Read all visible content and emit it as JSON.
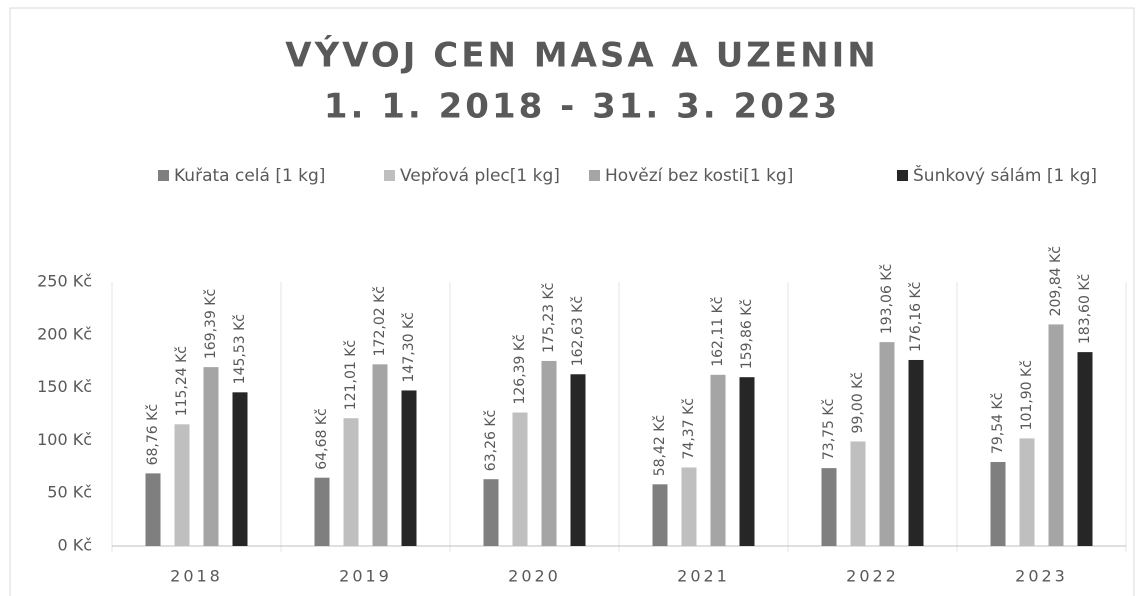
{
  "chart_data": {
    "type": "bar",
    "title": "VÝVOJ CEN MASA A UZENIN",
    "subtitle": "1. 1. 2018 - 31. 3. 2023",
    "categories": [
      "2018",
      "2019",
      "2020",
      "2021",
      "2022",
      "2023"
    ],
    "series": [
      {
        "name": "Kuřata celá [1 kg]",
        "color": "#7f7f7f",
        "values": [
          68.76,
          64.68,
          63.26,
          58.42,
          73.75,
          79.54
        ],
        "value_labels": [
          "68,76 Kč",
          "64,68 Kč",
          "63,26 Kč",
          "58,42 Kč",
          "73,75 Kč",
          "79,54 Kč"
        ]
      },
      {
        "name": "Vepřová plec[1 kg]",
        "color": "#bfbfbf",
        "values": [
          115.24,
          121.01,
          126.39,
          74.37,
          99.0,
          101.9
        ],
        "value_labels": [
          "115,24 Kč",
          "121,01 Kč",
          "126,39 Kč",
          "74,37 Kč",
          "99,00 Kč",
          "101,90 Kč"
        ]
      },
      {
        "name": "Hovězí bez kosti[1 kg]",
        "color": "#a5a5a5",
        "values": [
          169.39,
          172.02,
          175.23,
          162.11,
          193.06,
          209.84
        ],
        "value_labels": [
          "169,39 Kč",
          "172,02 Kč",
          "175,23 Kč",
          "162,11 Kč",
          "193,06 Kč",
          "209,84 Kč"
        ]
      },
      {
        "name": "Šunkový sálám [1 kg]",
        "color": "#262626",
        "values": [
          145.53,
          147.3,
          162.63,
          159.86,
          176.16,
          183.6
        ],
        "value_labels": [
          "145,53 Kč",
          "147,30 Kč",
          "162,63 Kč",
          "159,86 Kč",
          "176,16 Kč",
          "183,60 Kč"
        ]
      }
    ],
    "ylim": [
      0,
      250
    ],
    "yticks": [
      {
        "value": 0,
        "label": "0 Kč"
      },
      {
        "value": 50,
        "label": "50 Kč"
      },
      {
        "value": 100,
        "label": "100 Kč"
      },
      {
        "value": 150,
        "label": "150 Kč"
      },
      {
        "value": 200,
        "label": "200 Kč"
      },
      {
        "value": 250,
        "label": "250 Kč"
      }
    ],
    "legend": "top"
  }
}
